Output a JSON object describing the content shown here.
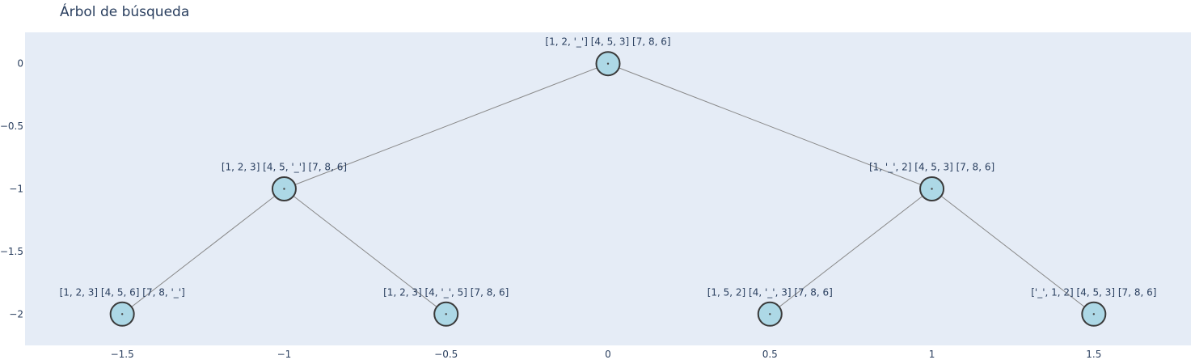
{
  "chart_data": {
    "type": "scatter",
    "title": "Árbol de búsqueda",
    "xlabel": "",
    "ylabel": "",
    "xlim": [
      -1.8,
      1.8
    ],
    "ylim": [
      -2.25,
      0.25
    ],
    "x_ticks": [
      -1.5,
      -1,
      -0.5,
      0,
      0.5,
      1,
      1.5
    ],
    "x_tick_labels": [
      "−1.5",
      "−1",
      "−0.5",
      "0",
      "0.5",
      "1",
      "1.5"
    ],
    "y_ticks": [
      0,
      -0.5,
      -1,
      -1.5,
      -2
    ],
    "y_tick_labels": [
      "0",
      "−0.5",
      "−1",
      "−1.5",
      "−2"
    ],
    "grid": false,
    "nodes": [
      {
        "id": "root",
        "x": 0,
        "y": 0,
        "label": "[1, 2, '_'] [4, 5, 3] [7, 8, 6]"
      },
      {
        "id": "l",
        "x": -1,
        "y": -1,
        "label": "[1, 2, 3] [4, 5, '_'] [7, 8, 6]"
      },
      {
        "id": "r",
        "x": 1,
        "y": -1,
        "label": "[1, '_', 2] [4, 5, 3] [7, 8, 6]"
      },
      {
        "id": "ll",
        "x": -1.5,
        "y": -2,
        "label": "[1, 2, 3] [4, 5, 6] [7, 8, '_']"
      },
      {
        "id": "lr",
        "x": -0.5,
        "y": -2,
        "label": "[1, 2, 3] [4, '_', 5] [7, 8, 6]"
      },
      {
        "id": "rl",
        "x": 0.5,
        "y": -2,
        "label": "[1, 5, 2] [4, '_', 3] [7, 8, 6]"
      },
      {
        "id": "rr",
        "x": 1.5,
        "y": -2,
        "label": "['_', 1, 2] [4, 5, 3] [7, 8, 6]"
      }
    ],
    "edges": [
      [
        "root",
        "l"
      ],
      [
        "root",
        "r"
      ],
      [
        "l",
        "ll"
      ],
      [
        "l",
        "lr"
      ],
      [
        "r",
        "rl"
      ],
      [
        "r",
        "rr"
      ]
    ],
    "colors": {
      "plot_bg": "#e5ecf6",
      "node_fill": "#add8e6",
      "node_stroke": "#3a3a3a",
      "edge": "#888888",
      "text": "#2a3f5f"
    }
  }
}
